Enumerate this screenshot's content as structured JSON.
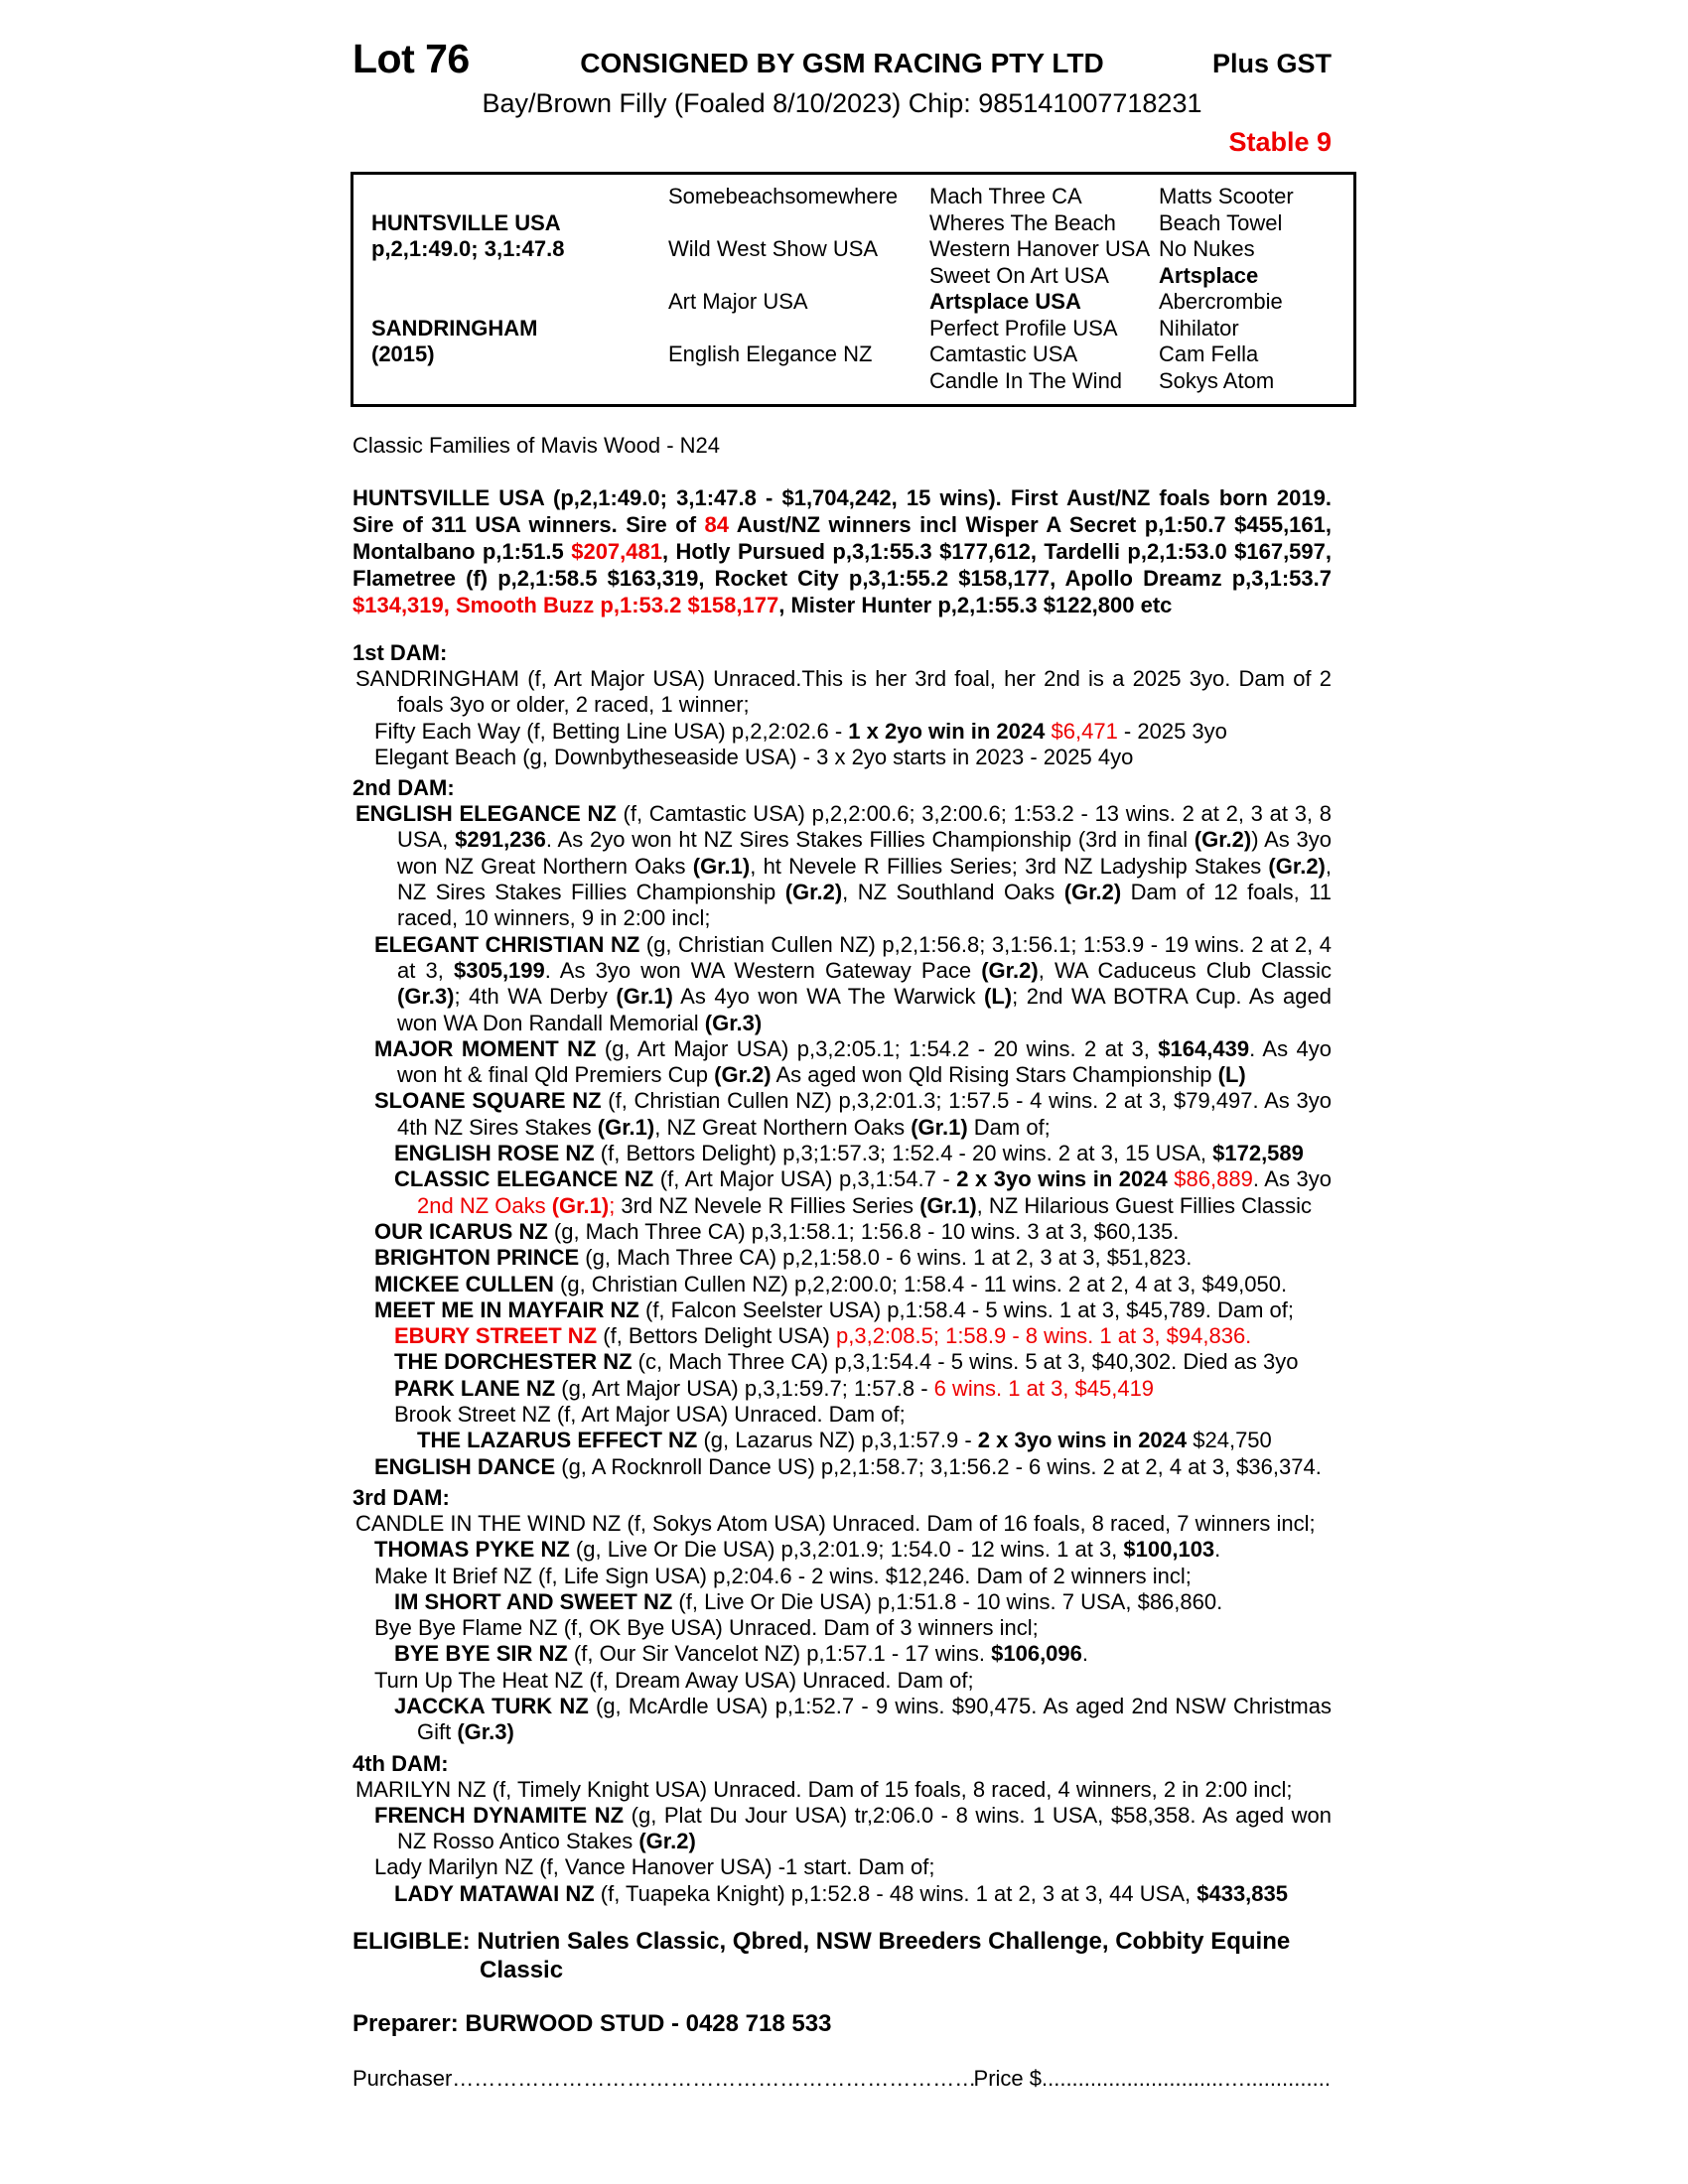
{
  "colors": {
    "accent_red": "#ee0000"
  },
  "header": {
    "lot": "Lot 76",
    "consignor": "CONSIGNED BY GSM RACING PTY LTD",
    "tax": "Plus GST",
    "description": "Bay/Brown Filly (Foaled 8/10/2023) Chip: 985141007718231",
    "stable": "Stable 9"
  },
  "pedigree_table": {
    "sire": {
      "name": "HUNTSVILLE USA",
      "record": "p,2,1:49.0; 3,1:47.8"
    },
    "dam": {
      "name": "SANDRINGHAM",
      "year": "(2015)"
    },
    "gen2": [
      "Somebeachsomewhere",
      "Wild West Show USA",
      "Art Major USA",
      "English Elegance NZ"
    ],
    "gen3": [
      {
        "t": "Mach Three CA"
      },
      {
        "t": "Wheres The Beach"
      },
      {
        "t": "Western Hanover USA"
      },
      {
        "t": "Sweet On Art USA"
      },
      {
        "t": "Artsplace USA",
        "b": true
      },
      {
        "t": "Perfect Profile USA"
      },
      {
        "t": "Camtastic USA"
      },
      {
        "t": "Candle In The Wind"
      }
    ],
    "gen4": [
      {
        "t": "Matts Scooter"
      },
      {
        "t": "Beach Towel"
      },
      {
        "t": "No Nukes"
      },
      {
        "t": "Artsplace",
        "b": true
      },
      {
        "t": "Abercrombie"
      },
      {
        "t": "Nihilator"
      },
      {
        "t": "Cam Fella"
      },
      {
        "t": "Sokys Atom"
      }
    ]
  },
  "family_note": "Classic Families of Mavis Wood - N24",
  "sire_summary": {
    "segments": [
      {
        "t": "HUNTSVILLE USA (p,2,1:49.0; 3,1:47.8 - $1,704,242, 15 wins).  First Aust/NZ foals born 2019. Sire of 311 USA winners. Sire of "
      },
      {
        "t": "84",
        "s": "r"
      },
      {
        "t": " Aust/NZ winners incl Wisper A Secret p,1:50.7 $455,161, Montalbano p,1:51.5 "
      },
      {
        "t": "$207,481",
        "s": "r"
      },
      {
        "t": ", Hotly Pursued p,3,1:55.3 $177,612, Tardelli p,2,1:53.0 $167,597, Flametree (f) p,2,1:58.5 $163,319, Rocket City p,3,1:55.2 $158,177, Apollo Dreamz p,3,1:53.7 "
      },
      {
        "t": "$134,319, Smooth Buzz p,1:53.2 $158,177",
        "s": "r"
      },
      {
        "t": ", Mister Hunter p,2,1:55.3 $122,800 etc"
      }
    ]
  },
  "sections": [
    {
      "heading": "1st DAM:",
      "items": [
        {
          "lvl": 1,
          "segments": [
            {
              "t": "SANDRINGHAM (f, Art Major USA) Unraced.This is her 3rd foal, her 2nd is a 2025 3yo. Dam of 2 foals 3yo or older, 2 raced, 1 winner;"
            }
          ]
        },
        {
          "lvl": 2,
          "segments": [
            {
              "t": "Fifty Each Way (f, Betting Line USA) p,2,2:02.6 - "
            },
            {
              "t": "1 x 2yo win in 2024",
              "s": "b"
            },
            {
              "t": " "
            },
            {
              "t": "$6,471",
              "s": "r"
            },
            {
              "t": " - 2025 3yo"
            }
          ]
        },
        {
          "lvl": 2,
          "segments": [
            {
              "t": "Elegant Beach (g, Downbytheseaside USA) - 3 x 2yo starts in 2023 - 2025 4yo"
            }
          ]
        }
      ]
    },
    {
      "heading": "2nd DAM:",
      "items": [
        {
          "lvl": 1,
          "segments": [
            {
              "t": "ENGLISH ELEGANCE NZ",
              "s": "b"
            },
            {
              "t": " (f, Camtastic USA) p,2,2:00.6; 3,2:00.6; 1:53.2 - 13 wins. 2 at 2, 3 at 3, 8 USA, "
            },
            {
              "t": "$291,236",
              "s": "b"
            },
            {
              "t": ". As 2yo won ht NZ Sires Stakes Fillies Championship (3rd in final "
            },
            {
              "t": "(Gr.2)",
              "s": "b"
            },
            {
              "t": ") As 3yo won NZ Great Northern Oaks "
            },
            {
              "t": "(Gr.1)",
              "s": "b"
            },
            {
              "t": ", ht Nevele R Fillies Series; 3rd NZ Ladyship Stakes "
            },
            {
              "t": "(Gr.2)",
              "s": "b"
            },
            {
              "t": ", NZ Sires Stakes Fillies Championship "
            },
            {
              "t": "(Gr.2)",
              "s": "b"
            },
            {
              "t": ", NZ Southland Oaks "
            },
            {
              "t": "(Gr.2)",
              "s": "b"
            },
            {
              "t": " Dam of 12 foals, 11 raced, 10 winners, 9 in 2:00 incl;"
            }
          ]
        },
        {
          "lvl": 2,
          "segments": [
            {
              "t": "ELEGANT CHRISTIAN NZ",
              "s": "b"
            },
            {
              "t": " (g, Christian Cullen NZ) p,2,1:56.8; 3,1:56.1; 1:53.9 - 19 wins. 2 at 2, 4 at 3, "
            },
            {
              "t": "$305,199",
              "s": "b"
            },
            {
              "t": ". As 3yo won WA Western Gateway Pace "
            },
            {
              "t": "(Gr.2)",
              "s": "b"
            },
            {
              "t": ", WA Caduceus Club Classic "
            },
            {
              "t": "(Gr.3)",
              "s": "b"
            },
            {
              "t": "; 4th WA Derby "
            },
            {
              "t": "(Gr.1)",
              "s": "b"
            },
            {
              "t": " As 4yo won WA The Warwick "
            },
            {
              "t": "(L)",
              "s": "b"
            },
            {
              "t": "; 2nd WA BOTRA Cup. As aged won WA Don Randall Memorial "
            },
            {
              "t": "(Gr.3)",
              "s": "b"
            }
          ]
        },
        {
          "lvl": 2,
          "segments": [
            {
              "t": "MAJOR MOMENT NZ",
              "s": "b"
            },
            {
              "t": " (g, Art Major USA) p,3,2:05.1; 1:54.2 - 20 wins. 2 at 3, "
            },
            {
              "t": "$164,439",
              "s": "b"
            },
            {
              "t": ". As 4yo won ht & final Qld Premiers Cup "
            },
            {
              "t": "(Gr.2)",
              "s": "b"
            },
            {
              "t": " As aged won Qld Rising Stars Championship "
            },
            {
              "t": "(L)",
              "s": "b"
            }
          ]
        },
        {
          "lvl": 2,
          "segments": [
            {
              "t": "SLOANE SQUARE NZ",
              "s": "b"
            },
            {
              "t": " (f, Christian Cullen NZ) p,3,2:01.3; 1:57.5 - 4 wins. 2 at 3, $79,497. As 3yo 4th NZ Sires Stakes "
            },
            {
              "t": "(Gr.1)",
              "s": "b"
            },
            {
              "t": ", NZ Great Northern Oaks "
            },
            {
              "t": "(Gr.1)",
              "s": "b"
            },
            {
              "t": " Dam of;"
            }
          ]
        },
        {
          "lvl": 3,
          "segments": [
            {
              "t": "ENGLISH ROSE NZ",
              "s": "b"
            },
            {
              "t": " (f, Bettors Delight) p,3;1:57.3; 1:52.4 - 20 wins. 2 at 3, 15 USA, "
            },
            {
              "t": "$172,589",
              "s": "b"
            }
          ]
        },
        {
          "lvl": 3,
          "segments": [
            {
              "t": "CLASSIC ELEGANCE NZ",
              "s": "b"
            },
            {
              "t": " (f, Art Major USA) p,3,1:54.7 - "
            },
            {
              "t": "2 x 3yo wins in 2024",
              "s": "b"
            },
            {
              "t": " "
            },
            {
              "t": "$86,889",
              "s": "r"
            },
            {
              "t": ". As 3yo "
            },
            {
              "t": "2nd NZ Oaks ",
              "s": "r"
            },
            {
              "t": "(Gr.1)",
              "s": "br"
            },
            {
              "t": ";",
              "s": "r"
            },
            {
              "t": " 3rd NZ Nevele R Fillies Series "
            },
            {
              "t": "(Gr.1)",
              "s": "b"
            },
            {
              "t": ", NZ Hilarious Guest Fillies Classic"
            }
          ]
        },
        {
          "lvl": 2,
          "segments": [
            {
              "t": "OUR ICARUS NZ",
              "s": "b"
            },
            {
              "t": " (g, Mach Three CA) p,3,1:58.1; 1:56.8 - 10 wins. 3 at 3, $60,135."
            }
          ]
        },
        {
          "lvl": 2,
          "segments": [
            {
              "t": "BRIGHTON PRINCE",
              "s": "b"
            },
            {
              "t": " (g, Mach Three CA) p,2,1:58.0 - 6 wins. 1 at 2, 3 at 3, $51,823."
            }
          ]
        },
        {
          "lvl": 2,
          "segments": [
            {
              "t": "MICKEE CULLEN",
              "s": "b"
            },
            {
              "t": " (g, Christian Cullen NZ) p,2,2:00.0; 1:58.4 - 11 wins. 2 at 2, 4 at 3, $49,050."
            }
          ]
        },
        {
          "lvl": 2,
          "segments": [
            {
              "t": "MEET ME IN MAYFAIR NZ",
              "s": "b"
            },
            {
              "t": " (f, Falcon Seelster USA) p,1:58.4 - 5 wins. 1 at 3, $45,789. Dam of;"
            }
          ]
        },
        {
          "lvl": 3,
          "segments": [
            {
              "t": "EBURY STREET NZ",
              "s": "br"
            },
            {
              "t": " (f, Bettors Delight USA) "
            },
            {
              "t": "p,3,2:08.5; 1:58.9 - 8 wins. 1 at 3, $94,836.",
              "s": "r"
            }
          ]
        },
        {
          "lvl": 3,
          "segments": [
            {
              "t": "THE DORCHESTER NZ",
              "s": "b"
            },
            {
              "t": " (c, Mach Three CA) p,3,1:54.4 - 5 wins. 5 at 3, $40,302. Died as 3yo"
            }
          ]
        },
        {
          "lvl": 3,
          "segments": [
            {
              "t": "PARK LANE NZ",
              "s": "b"
            },
            {
              "t": " (g, Art Major USA) p,3,1:59.7; 1:57.8 - "
            },
            {
              "t": "6 wins. 1 at 3, $45,419",
              "s": "r"
            }
          ]
        },
        {
          "lvl": 3,
          "segments": [
            {
              "t": "Brook Street NZ (f, Art Major USA) Unraced. Dam of;"
            }
          ]
        },
        {
          "lvl": 4,
          "segments": [
            {
              "t": "THE LAZARUS EFFECT NZ",
              "s": "b"
            },
            {
              "t": " (g, Lazarus NZ) p,3,1:57.9 - "
            },
            {
              "t": "2 x 3yo wins in 2024",
              "s": "b"
            },
            {
              "t": " $24,750"
            }
          ]
        },
        {
          "lvl": 2,
          "segments": [
            {
              "t": "ENGLISH DANCE",
              "s": "b"
            },
            {
              "t": " (g, A Rocknroll Dance US) p,2,1:58.7; 3,1:56.2 - 6 wins. 2 at 2, 4 at 3, $36,374."
            }
          ]
        }
      ]
    },
    {
      "heading": "3rd DAM:",
      "items": [
        {
          "lvl": 1,
          "segments": [
            {
              "t": "CANDLE IN THE WIND NZ (f, Sokys Atom USA) Unraced. Dam of 16 foals, 8 raced, 7 winners incl;"
            }
          ]
        },
        {
          "lvl": 2,
          "segments": [
            {
              "t": "THOMAS PYKE NZ",
              "s": "b"
            },
            {
              "t": " (g, Live Or Die USA) p,3,2:01.9; 1:54.0 - 12 wins. 1 at 3, "
            },
            {
              "t": "$100,103",
              "s": "b"
            },
            {
              "t": "."
            }
          ]
        },
        {
          "lvl": 2,
          "segments": [
            {
              "t": "Make It Brief NZ (f, Life Sign USA) p,2:04.6 - 2 wins. $12,246. Dam of 2 winners incl;"
            }
          ]
        },
        {
          "lvl": 3,
          "segments": [
            {
              "t": "IM SHORT AND SWEET NZ",
              "s": "b"
            },
            {
              "t": " (f, Live Or Die USA) p,1:51.8 - 10 wins. 7 USA, $86,860."
            }
          ]
        },
        {
          "lvl": 2,
          "segments": [
            {
              "t": "Bye Bye Flame NZ (f, OK Bye USA) Unraced. Dam of 3 winners incl;"
            }
          ]
        },
        {
          "lvl": 3,
          "segments": [
            {
              "t": "BYE BYE SIR NZ",
              "s": "b"
            },
            {
              "t": " (f, Our Sir Vancelot NZ) p,1:57.1 - 17 wins. "
            },
            {
              "t": "$106,096",
              "s": "b"
            },
            {
              "t": "."
            }
          ]
        },
        {
          "lvl": 2,
          "segments": [
            {
              "t": "Turn Up The Heat NZ (f, Dream Away USA) Unraced. Dam of;"
            }
          ]
        },
        {
          "lvl": 3,
          "segments": [
            {
              "t": "JACCKA TURK NZ",
              "s": "b"
            },
            {
              "t": " (g, McArdle USA) p,1:52.7 - 9 wins. $90,475. As aged 2nd NSW Christmas Gift "
            },
            {
              "t": "(Gr.3)",
              "s": "b"
            }
          ]
        }
      ]
    },
    {
      "heading": "4th DAM:",
      "items": [
        {
          "lvl": 1,
          "segments": [
            {
              "t": "MARILYN NZ (f, Timely Knight USA) Unraced. Dam of 15 foals, 8 raced, 4 winners, 2 in 2:00 incl;"
            }
          ]
        },
        {
          "lvl": 2,
          "segments": [
            {
              "t": "FRENCH DYNAMITE NZ",
              "s": "b"
            },
            {
              "t": " (g, Plat Du Jour USA) tr,2:06.0 - 8 wins. 1 USA, $58,358. As aged won NZ Rosso Antico Stakes "
            },
            {
              "t": "(Gr.2)",
              "s": "b"
            }
          ]
        },
        {
          "lvl": 2,
          "segments": [
            {
              "t": "Lady Marilyn NZ (f, Vance Hanover USA) -1 start. Dam of;"
            }
          ]
        },
        {
          "lvl": 3,
          "segments": [
            {
              "t": "LADY MATAWAI NZ",
              "s": "b"
            },
            {
              "t": " (f, Tuapeka Knight) p,1:52.8 - 48 wins. 1 at 2, 3 at 3, 44 USA, "
            },
            {
              "t": "$433,835",
              "s": "b"
            }
          ]
        }
      ]
    }
  ],
  "eligibility": "ELIGIBLE: Nutrien Sales Classic, Qbred, NSW Breeders Challenge, Cobbity Equine Classic",
  "preparer": "Preparer: BURWOOD STUD - 0428 718 533",
  "purchase_line": {
    "purchaser_label": "Purchaser",
    "dots_a": "……………………………………………………………………………………………………",
    "price_label": "Price $",
    "dots_b": "..............................….........................................."
  }
}
